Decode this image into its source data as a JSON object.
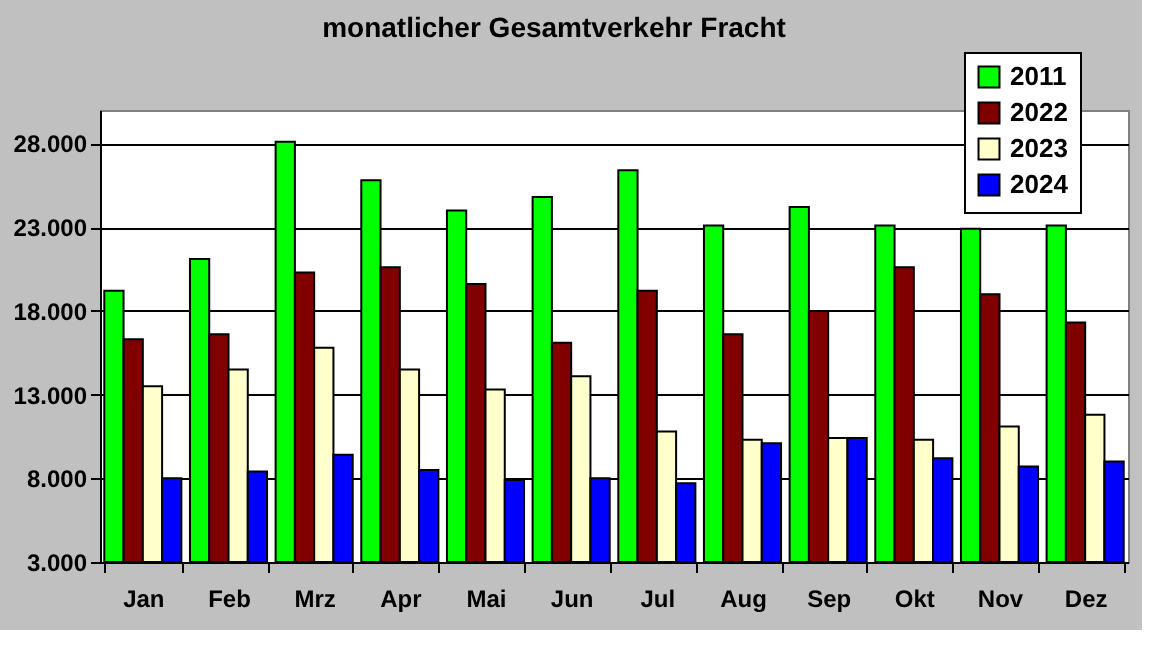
{
  "chart_data": {
    "type": "bar",
    "title": "monatlicher Gesamtverkehr  Fracht",
    "categories": [
      "Jan",
      "Feb",
      "Mrz",
      "Apr",
      "Mai",
      "Jun",
      "Jul",
      "Aug",
      "Sep",
      "Okt",
      "Nov",
      "Dez"
    ],
    "series": [
      {
        "name": "2011",
        "color": "#00ff00",
        "values": [
          19200,
          21100,
          28100,
          25800,
          24000,
          24800,
          26400,
          23100,
          24200,
          23100,
          22900,
          23100
        ]
      },
      {
        "name": "2022",
        "color": "#800000",
        "values": [
          16300,
          16600,
          20300,
          20600,
          19600,
          16100,
          19200,
          16600,
          18000,
          20600,
          19000,
          17300
        ]
      },
      {
        "name": "2023",
        "color": "#ffffcc",
        "values": [
          13500,
          14500,
          15800,
          14500,
          13300,
          14100,
          10800,
          10300,
          10400,
          10300,
          11100,
          11800
        ]
      },
      {
        "name": "2024",
        "color": "#0000ff",
        "values": [
          8000,
          8400,
          9400,
          8500,
          7900,
          8000,
          7700,
          10100,
          10400,
          9200,
          8700,
          9000
        ]
      }
    ],
    "ylim": [
      3000,
      30000
    ],
    "yticks": [
      {
        "value": 3000,
        "label": "3.000"
      },
      {
        "value": 8000,
        "label": "8.000"
      },
      {
        "value": 13000,
        "label": "13.000"
      },
      {
        "value": 18000,
        "label": "18.000"
      },
      {
        "value": 23000,
        "label": "23.000"
      },
      {
        "value": 28000,
        "label": "28.000"
      }
    ],
    "grid": "y",
    "legend": "top right"
  }
}
